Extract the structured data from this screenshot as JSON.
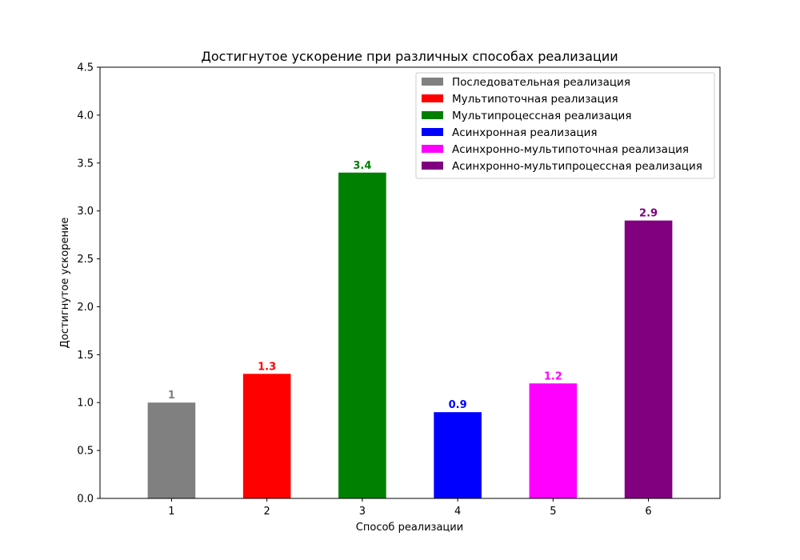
{
  "chart_data": {
    "type": "bar",
    "title": "Достигнутое ускорение при различных способах реализации",
    "xlabel": "Способ реализации",
    "ylabel": "Достигнутое ускорение",
    "categories": [
      "1",
      "2",
      "3",
      "4",
      "5",
      "6"
    ],
    "values": [
      1.0,
      1.3,
      3.4,
      0.9,
      1.2,
      2.9
    ],
    "data_labels": [
      "1",
      "1.3",
      "3.4",
      "0.9",
      "1.2",
      "2.9"
    ],
    "colors": [
      "#808080",
      "#ff0000",
      "#008000",
      "#0000ff",
      "#ff00ff",
      "#800080"
    ],
    "series_names": [
      "Последовательная реализация",
      "Мультипоточная реализация",
      "Мультипроцессная реализация",
      "Асинхронная реализация",
      "Асинхронно-мультипоточная реализация",
      "Асинхронно-мультипроцессная реализация"
    ],
    "ylim": [
      0,
      4.5
    ],
    "yticks": [
      "0.0",
      "0.5",
      "1.0",
      "1.5",
      "2.0",
      "2.5",
      "3.0",
      "3.5",
      "4.0",
      "4.5"
    ],
    "grid": false,
    "legend_position": "top-right"
  }
}
